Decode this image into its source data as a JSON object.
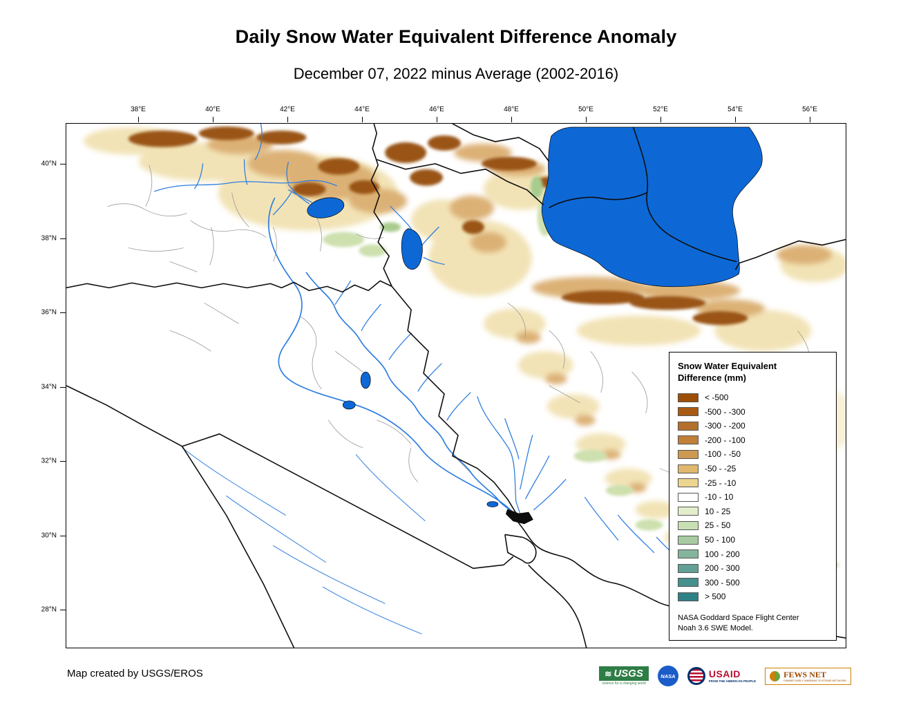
{
  "title": "Daily Snow Water Equivalent Difference Anomaly",
  "subtitle": "December 07, 2022 minus Average (2002-2016)",
  "map": {
    "lon_labels": [
      "38°E",
      "40°E",
      "42°E",
      "44°E",
      "46°E",
      "48°E",
      "50°E",
      "52°E",
      "54°E",
      "56°E"
    ],
    "lat_labels": [
      "40°N",
      "38°N",
      "36°N",
      "34°N",
      "32°N",
      "30°N",
      "28°N"
    ],
    "water_color": "#0d68d6",
    "river_color": "#2e7ee0"
  },
  "legend": {
    "title_line1": "Snow Water Equivalent",
    "title_line2": "Difference (mm)",
    "entries": [
      {
        "label": "< -500",
        "color": "#9c4e06"
      },
      {
        "label": "-500 - -300",
        "color": "#a85a12"
      },
      {
        "label": "-300 - -200",
        "color": "#b4702a"
      },
      {
        "label": "-200 - -100",
        "color": "#c08038"
      },
      {
        "label": "-100 - -50",
        "color": "#cc9a52"
      },
      {
        "label": "-50 - -25",
        "color": "#e0b86e"
      },
      {
        "label": "-25 - -10",
        "color": "#ecd591"
      },
      {
        "label": "-10 - 10",
        "color": "#ffffff"
      },
      {
        "label": "10 - 25",
        "color": "#e4eecc"
      },
      {
        "label": "25 - 50",
        "color": "#c8dfb4"
      },
      {
        "label": "50 - 100",
        "color": "#a8cba2"
      },
      {
        "label": "100 - 200",
        "color": "#84b49c"
      },
      {
        "label": "200 - 300",
        "color": "#62a096"
      },
      {
        "label": "300 - 500",
        "color": "#46908e"
      },
      {
        "label": "> 500",
        "color": "#2f8188"
      }
    ],
    "note_line1": "NASA Goddard Space Flight Center",
    "note_line2": "Noah 3.6 SWE Model."
  },
  "footer": {
    "credit": "Map created by USGS/EROS",
    "logos": {
      "usgs": {
        "label": "USGS",
        "tagline": "science for a changing world"
      },
      "nasa": {
        "label": "NASA"
      },
      "usaid": {
        "label": "USAID",
        "tagline": "FROM THE AMERICAN PEOPLE"
      },
      "fews": {
        "label": "FEWS NET",
        "tagline": "FAMINE EARLY WARNING SYSTEMS NETWORK"
      }
    }
  }
}
